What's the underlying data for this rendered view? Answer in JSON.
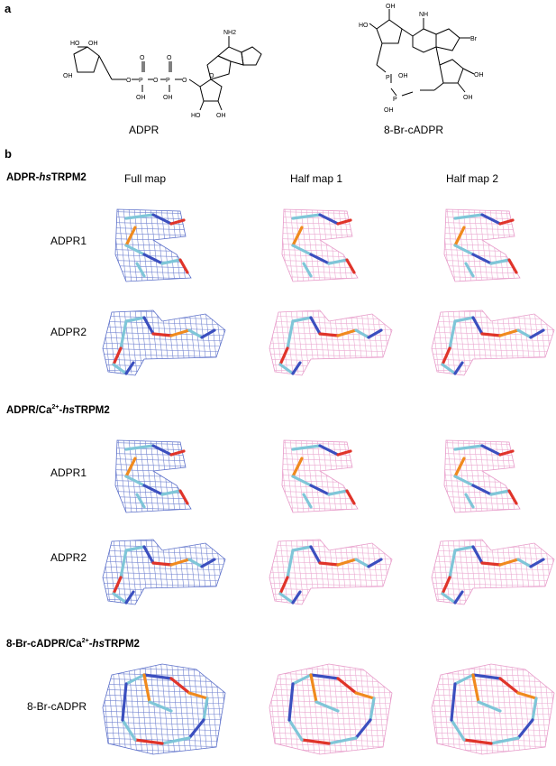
{
  "panel_a": {
    "letter": "a",
    "structures": [
      {
        "name": "ADPR"
      },
      {
        "name": "8-Br-cADPR"
      }
    ],
    "atom_labels": {
      "oh": "OH",
      "ho": "HO",
      "o": "O",
      "p": "P",
      "n": "N",
      "nh2": "NH2",
      "nh": "NH",
      "br": "Br"
    }
  },
  "panel_b": {
    "letter": "b",
    "column_headers": [
      "Full map",
      "Half map 1",
      "Half map 2"
    ],
    "groups": [
      {
        "title_prefix": "ADPR-",
        "title_italic": "hs",
        "title_suffix": "TRPM2",
        "rows": [
          "ADPR1",
          "ADPR2"
        ]
      },
      {
        "title_prefix": "ADPR/Ca",
        "title_sup": "2+",
        "title_dash": "-",
        "title_italic": "hs",
        "title_suffix": "TRPM2",
        "rows": [
          "ADPR1",
          "ADPR2"
        ]
      },
      {
        "title_prefix": "8-Br-cADPR/Ca",
        "title_sup": "2+",
        "title_dash": "-",
        "title_italic": "hs",
        "title_suffix": "TRPM2",
        "rows": [
          "8-Br-cADPR"
        ]
      }
    ],
    "map_colors": {
      "full_map": "#5b6fc9",
      "half_map": "#e79ac9",
      "ligand_carbon": "#7fc6d8",
      "oxygen": "#e0342a",
      "nitrogen": "#3b4fbf",
      "phosphorus": "#f08a1e"
    }
  }
}
